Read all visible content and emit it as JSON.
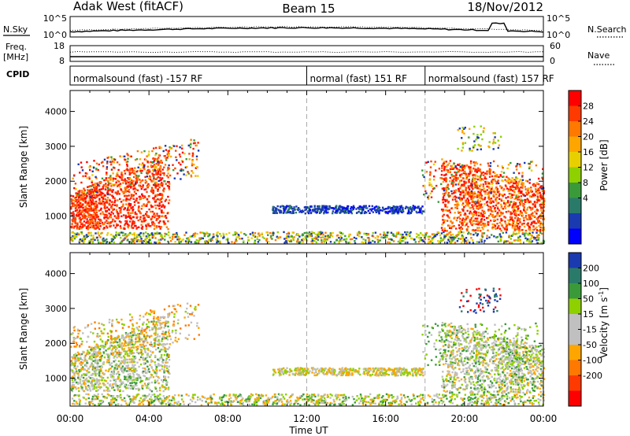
{
  "header": {
    "radar": "Adak West (fitACF)",
    "beam": "Beam 15",
    "date": "18/Nov/2012"
  },
  "chart_data": [
    {
      "type": "line",
      "panel": "noise",
      "left_label": "N.Sky",
      "right_label": "N.Search",
      "left_ticks": [
        "10^5",
        "10^0"
      ],
      "right_ticks": [
        "10^5",
        "10^0"
      ]
    },
    {
      "type": "line",
      "panel": "frequency",
      "left_label_top": "Freq.",
      "left_label_bottom": "[MHz]",
      "right_label": "Nave",
      "left_ticks": [
        "18",
        "8"
      ],
      "right_ticks": [
        "60",
        "0"
      ]
    },
    {
      "type": "table",
      "panel": "cpid",
      "label": "CPID",
      "segments": [
        {
          "start_hour": 0,
          "end_hour": 12,
          "text": "normalsound (fast) -157 RF"
        },
        {
          "start_hour": 12,
          "end_hour": 18,
          "text": "normal (fast) 151 RF"
        },
        {
          "start_hour": 18,
          "end_hour": 24,
          "text": "normalsound (fast) 157 RF"
        }
      ]
    },
    {
      "type": "heatmap",
      "panel": "power",
      "ylabel": "Slant Range [km]",
      "y_ticks": [
        1000,
        2000,
        3000,
        4000
      ],
      "ylim": [
        200,
        4600
      ],
      "xlim": [
        0,
        24
      ],
      "colorbar_label": "Power [dB]",
      "colorbar_ticks": [
        "28",
        "24",
        "20",
        "16",
        "12",
        "8",
        "4"
      ],
      "colorbar_colors": [
        "#ff0000",
        "#ff3a00",
        "#ff7800",
        "#ffa500",
        "#e8d000",
        "#8ed000",
        "#3a9a3a",
        "#2a7a6a",
        "#1a3ab0",
        "#0000ff"
      ]
    },
    {
      "type": "heatmap",
      "panel": "velocity",
      "ylabel": "Slant Range [km]",
      "y_ticks": [
        1000,
        2000,
        3000,
        4000
      ],
      "ylim": [
        200,
        4600
      ],
      "xlim": [
        0,
        24
      ],
      "xlabel": "Time UT",
      "x_ticks": [
        "00:00",
        "04:00",
        "08:00",
        "12:00",
        "16:00",
        "20:00",
        "00:00"
      ],
      "colorbar_label_main": "Velocity [m s",
      "colorbar_label_exp": "-1",
      "colorbar_label_end": "]",
      "colorbar_ticks": [
        "200",
        "100",
        "50",
        "15",
        "-15",
        "-50",
        "-100",
        "-200"
      ],
      "colorbar_colors": [
        "#1a3ab0",
        "#2a7a6a",
        "#3a9a3a",
        "#8ed000",
        "#c0c0c0",
        "#c0c0c0",
        "#ffa500",
        "#ff7800",
        "#ff3a00",
        "#ff0000"
      ]
    }
  ]
}
